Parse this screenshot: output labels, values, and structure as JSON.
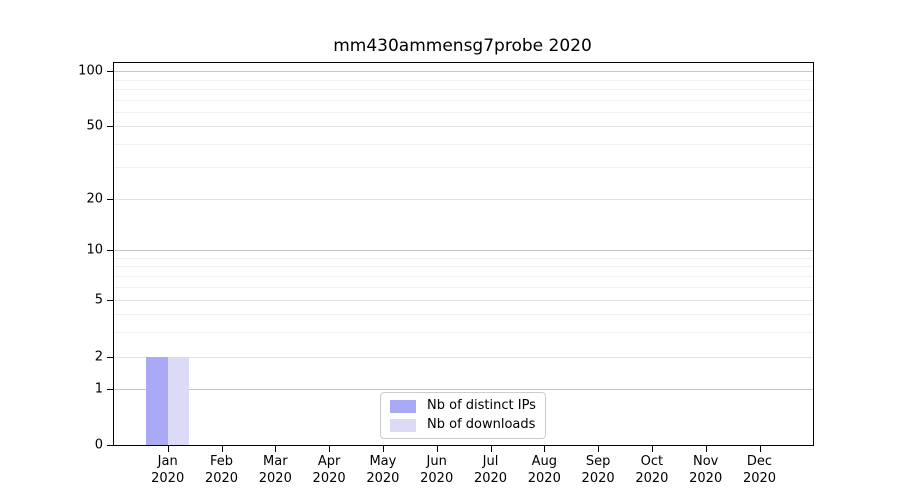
{
  "title": "mm430ammensg7probe 2020",
  "chart_data": {
    "type": "bar",
    "title": "mm430ammensg7probe 2020",
    "x_month_labels": [
      "Jan",
      "Feb",
      "Mar",
      "Apr",
      "May",
      "Jun",
      "Jul",
      "Aug",
      "Sep",
      "Oct",
      "Nov",
      "Dec"
    ],
    "x_year_label": "2020",
    "series": [
      {
        "name": "Nb of distinct IPs",
        "color": "#a9a9f5",
        "values": [
          2,
          0,
          0,
          0,
          0,
          0,
          0,
          0,
          0,
          0,
          0,
          0
        ]
      },
      {
        "name": "Nb of downloads",
        "color": "#dbdbf8",
        "values": [
          2,
          0,
          0,
          0,
          0,
          0,
          0,
          0,
          0,
          0,
          0,
          0
        ]
      }
    ],
    "yscale": "symlog",
    "ylim": [
      0,
      112
    ],
    "yticks": [
      0,
      1,
      2,
      5,
      10,
      20,
      50,
      100
    ],
    "yticks_minor": [
      3,
      4,
      6,
      7,
      8,
      9,
      30,
      40,
      60,
      70,
      80,
      90
    ],
    "grid": "horizontal",
    "legend_position": "lower center"
  },
  "legend": {
    "items": [
      {
        "label": "Nb of distinct IPs",
        "color": "#a9a9f5"
      },
      {
        "label": "Nb of downloads",
        "color": "#dbdbf8"
      }
    ]
  },
  "colors": {
    "bar_distinct_ips": "#a9a9f5",
    "bar_downloads": "#dbdbf8",
    "grid_major": "#c6c6c6",
    "grid_mid": "#e3e3e3",
    "grid_minor": "#f0f0f0",
    "spine": "#000000",
    "background": "#ffffff"
  }
}
